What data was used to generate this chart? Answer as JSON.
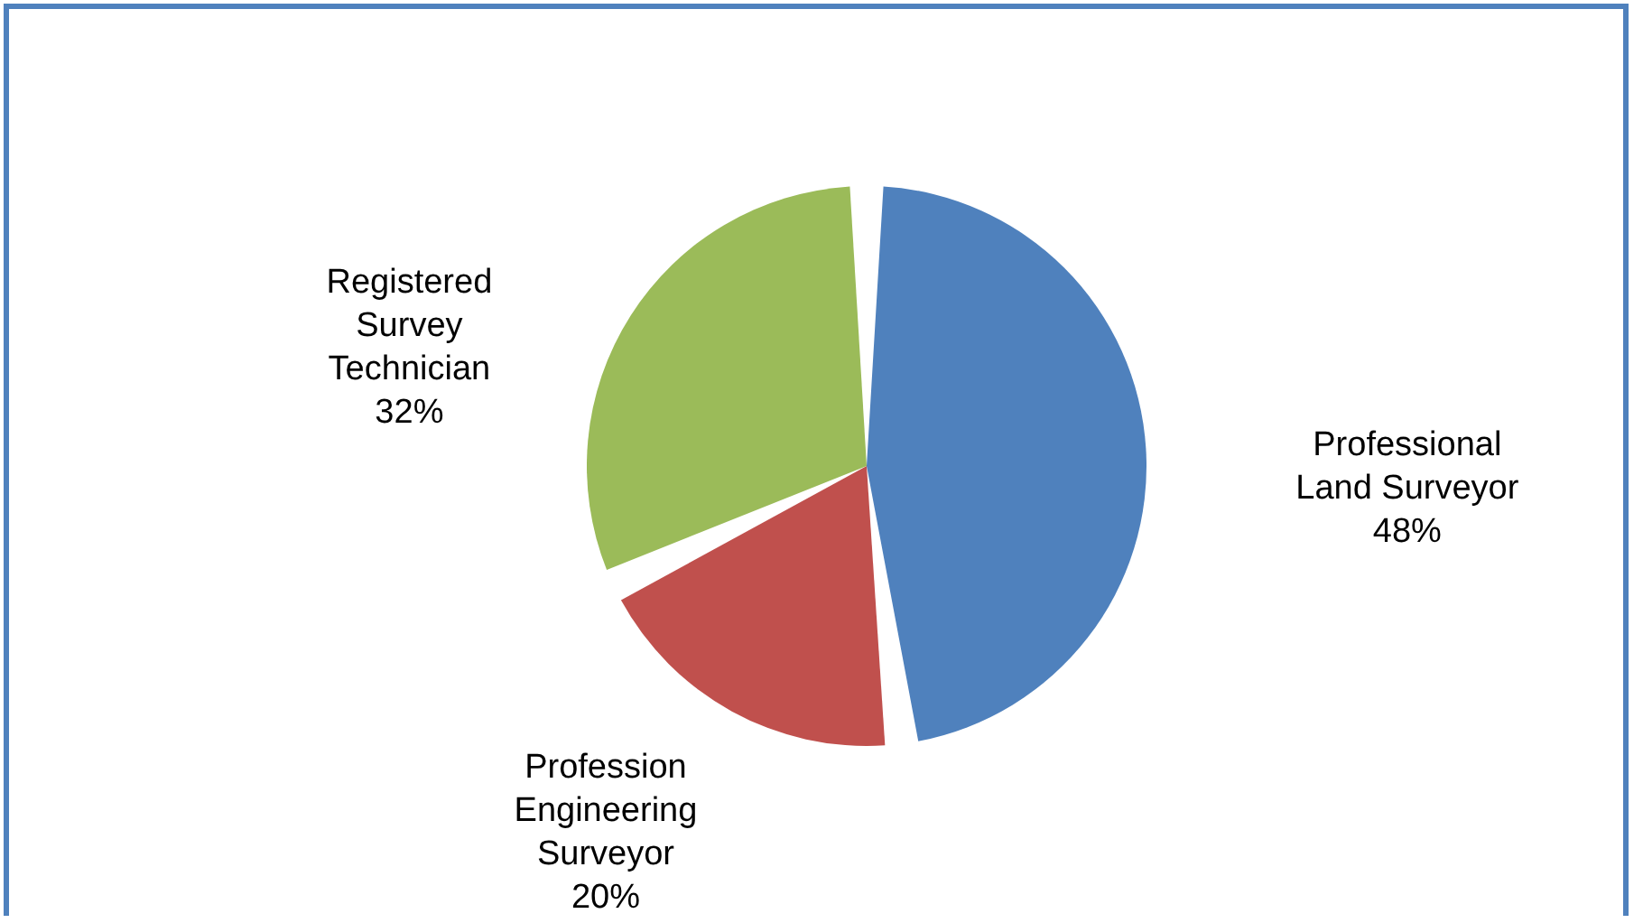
{
  "chart_data": {
    "type": "pie",
    "categories": [
      "Professional\nLand Surveyor",
      "Profession\nEngineering\nSurveyor",
      "Registered\nSurvey\nTechnician"
    ],
    "values": [
      48,
      20,
      32
    ],
    "value_labels": [
      "48%",
      "20%",
      "32%"
    ],
    "colors": [
      "#4f81bd",
      "#c0504d",
      "#9bbb59"
    ]
  }
}
